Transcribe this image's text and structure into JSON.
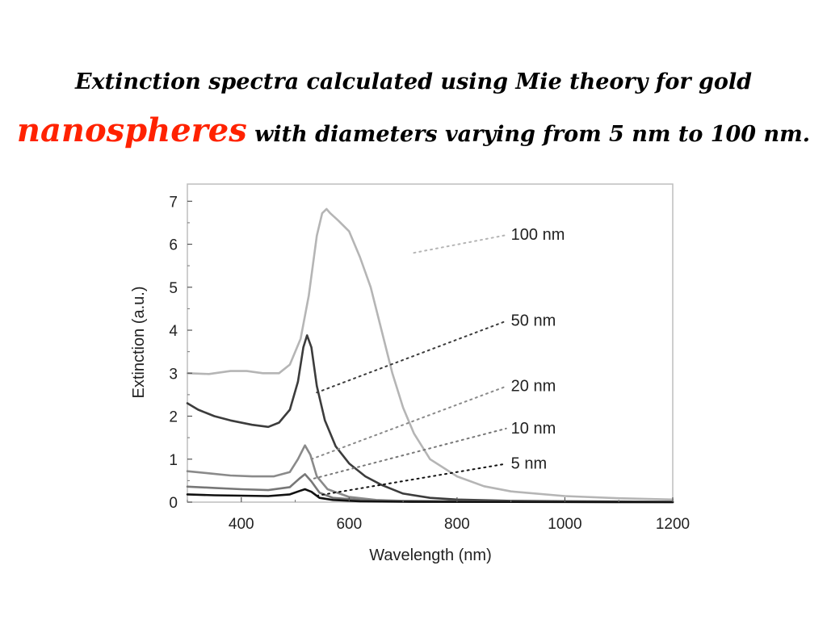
{
  "slide": {
    "title_line1": "Extinction spectra calculated using Mie theory for gold",
    "title_accent": "nanospheres",
    "title_rest": "with diameters varying from 5 nm to 100 nm.",
    "accent_color": "#ff2200"
  },
  "chart_data": {
    "type": "line",
    "title": "",
    "xlabel": "Wavelength (nm)",
    "ylabel": "Extinction (a.u.)",
    "xlim": [
      300,
      1200
    ],
    "ylim": [
      0,
      7.4
    ],
    "xticks": [
      400,
      600,
      800,
      1000,
      1200
    ],
    "yticks": [
      0,
      1,
      2,
      3,
      4,
      5,
      6,
      7
    ],
    "grid": false,
    "series": [
      {
        "name": "100 nm",
        "color": "#b5b5b5",
        "label_anchor": [
          720,
          5.8
        ],
        "label_pos": [
          900,
          6.1
        ],
        "points": [
          [
            300,
            3.0
          ],
          [
            340,
            2.98
          ],
          [
            380,
            3.05
          ],
          [
            410,
            3.05
          ],
          [
            440,
            3.0
          ],
          [
            470,
            3.0
          ],
          [
            490,
            3.2
          ],
          [
            510,
            3.8
          ],
          [
            525,
            4.8
          ],
          [
            540,
            6.2
          ],
          [
            550,
            6.72
          ],
          [
            558,
            6.82
          ],
          [
            565,
            6.72
          ],
          [
            580,
            6.55
          ],
          [
            600,
            6.3
          ],
          [
            620,
            5.7
          ],
          [
            640,
            5.0
          ],
          [
            660,
            4.0
          ],
          [
            680,
            3.0
          ],
          [
            700,
            2.2
          ],
          [
            720,
            1.6
          ],
          [
            750,
            1.0
          ],
          [
            800,
            0.6
          ],
          [
            850,
            0.37
          ],
          [
            900,
            0.25
          ],
          [
            1000,
            0.14
          ],
          [
            1100,
            0.09
          ],
          [
            1200,
            0.06
          ]
        ]
      },
      {
        "name": "50 nm",
        "color": "#3c3c3c",
        "label_anchor": [
          540,
          2.55
        ],
        "label_pos": [
          900,
          4.1
        ],
        "points": [
          [
            300,
            2.3
          ],
          [
            320,
            2.15
          ],
          [
            350,
            2.0
          ],
          [
            380,
            1.9
          ],
          [
            420,
            1.8
          ],
          [
            450,
            1.75
          ],
          [
            470,
            1.85
          ],
          [
            490,
            2.15
          ],
          [
            505,
            2.8
          ],
          [
            515,
            3.6
          ],
          [
            522,
            3.88
          ],
          [
            530,
            3.6
          ],
          [
            540,
            2.7
          ],
          [
            555,
            1.9
          ],
          [
            575,
            1.3
          ],
          [
            600,
            0.9
          ],
          [
            630,
            0.6
          ],
          [
            660,
            0.4
          ],
          [
            700,
            0.2
          ],
          [
            750,
            0.1
          ],
          [
            800,
            0.06
          ],
          [
            900,
            0.03
          ],
          [
            1000,
            0.02
          ],
          [
            1200,
            0.01
          ]
        ]
      },
      {
        "name": "20 nm",
        "color": "#8a8a8a",
        "label_anchor": [
          530,
          1.0
        ],
        "label_pos": [
          900,
          2.58
        ],
        "points": [
          [
            300,
            0.72
          ],
          [
            340,
            0.67
          ],
          [
            380,
            0.62
          ],
          [
            420,
            0.6
          ],
          [
            460,
            0.6
          ],
          [
            490,
            0.7
          ],
          [
            505,
            1.0
          ],
          [
            518,
            1.32
          ],
          [
            528,
            1.1
          ],
          [
            540,
            0.6
          ],
          [
            560,
            0.3
          ],
          [
            600,
            0.12
          ],
          [
            650,
            0.05
          ],
          [
            700,
            0.03
          ],
          [
            800,
            0.02
          ],
          [
            1000,
            0.01
          ],
          [
            1200,
            0.01
          ]
        ]
      },
      {
        "name": "10 nm",
        "color": "#777777",
        "label_anchor": [
          535,
          0.55
        ],
        "label_pos": [
          900,
          1.6
        ],
        "points": [
          [
            300,
            0.36
          ],
          [
            350,
            0.33
          ],
          [
            400,
            0.3
          ],
          [
            450,
            0.28
          ],
          [
            490,
            0.35
          ],
          [
            508,
            0.55
          ],
          [
            518,
            0.65
          ],
          [
            530,
            0.48
          ],
          [
            545,
            0.22
          ],
          [
            570,
            0.1
          ],
          [
            620,
            0.05
          ],
          [
            700,
            0.02
          ],
          [
            800,
            0.01
          ],
          [
            1200,
            0.0
          ]
        ]
      },
      {
        "name": "5 nm",
        "color": "#111111",
        "label_anchor": [
          540,
          0.15
        ],
        "label_pos": [
          900,
          0.78
        ],
        "points": [
          [
            300,
            0.18
          ],
          [
            350,
            0.16
          ],
          [
            400,
            0.15
          ],
          [
            450,
            0.14
          ],
          [
            490,
            0.18
          ],
          [
            508,
            0.26
          ],
          [
            518,
            0.3
          ],
          [
            530,
            0.24
          ],
          [
            545,
            0.1
          ],
          [
            570,
            0.05
          ],
          [
            620,
            0.02
          ],
          [
            700,
            0.01
          ],
          [
            1200,
            0.0
          ]
        ]
      }
    ]
  }
}
